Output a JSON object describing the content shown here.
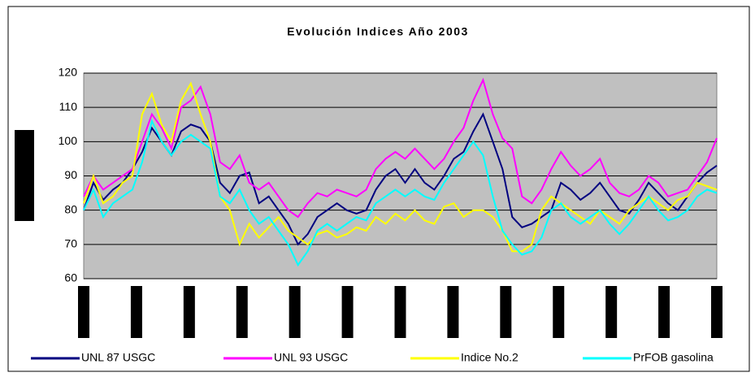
{
  "chart_data": {
    "type": "line",
    "title": "Evolución Indices Año 2003",
    "categories": [
      null,
      null,
      null,
      null,
      null,
      null,
      null,
      null,
      null,
      null,
      null,
      null,
      null,
      null,
      null,
      null,
      null,
      null,
      null,
      null,
      null,
      null,
      null,
      null,
      null,
      null,
      null,
      null,
      null,
      null,
      null,
      null,
      null,
      null,
      null,
      null,
      null,
      null,
      null,
      null,
      null,
      null,
      null,
      null,
      null,
      null,
      null,
      null,
      null,
      null,
      null,
      null,
      null,
      null,
      null,
      null,
      null,
      null,
      null,
      null,
      null,
      null,
      null,
      null,
      null,
      null
    ],
    "ylim": [
      60,
      120
    ],
    "yticks": [
      60,
      70,
      80,
      90,
      100,
      110,
      120
    ],
    "grid": true,
    "legend": "bottom",
    "series": [
      {
        "name": "UNL 87 USGC",
        "color": "#000080",
        "values": [
          80,
          88,
          83,
          86,
          88,
          92,
          97,
          104,
          100,
          96,
          103,
          105,
          104,
          100,
          88,
          85,
          90,
          91,
          82,
          84,
          80,
          76,
          70,
          73,
          78,
          80,
          82,
          80,
          79,
          80,
          86,
          90,
          92,
          88,
          92,
          88,
          86,
          90,
          95,
          97,
          103,
          108,
          100,
          92,
          78,
          75,
          76,
          78,
          80,
          88,
          86,
          83,
          85,
          88,
          84,
          80,
          79,
          83,
          88,
          85,
          82,
          80,
          84,
          88,
          91,
          93
        ]
      },
      {
        "name": "UNL 93 USGC",
        "color": "#ff00ff",
        "values": [
          84,
          90,
          86,
          88,
          90,
          92,
          100,
          108,
          104,
          98,
          110,
          112,
          116,
          108,
          94,
          92,
          96,
          88,
          86,
          88,
          84,
          80,
          78,
          82,
          85,
          84,
          86,
          85,
          84,
          86,
          92,
          95,
          97,
          95,
          98,
          95,
          92,
          95,
          100,
          104,
          112,
          118,
          108,
          101,
          98,
          84,
          82,
          86,
          92,
          97,
          93,
          90,
          92,
          95,
          88,
          85,
          84,
          86,
          90,
          88,
          84,
          85,
          86,
          90,
          94,
          101
        ]
      },
      {
        "name": "Indice No.2",
        "color": "#ffff00",
        "values": [
          82,
          90,
          82,
          84,
          88,
          90,
          108,
          114,
          105,
          100,
          112,
          117,
          108,
          100,
          84,
          80,
          70,
          76,
          72,
          75,
          78,
          74,
          72,
          70,
          73,
          74,
          72,
          73,
          75,
          74,
          78,
          76,
          79,
          77,
          80,
          77,
          76,
          81,
          82,
          78,
          80,
          80,
          78,
          74,
          68,
          68,
          70,
          80,
          84,
          82,
          80,
          78,
          76,
          80,
          78,
          76,
          80,
          82,
          84,
          82,
          80,
          83,
          84,
          88,
          87,
          86
        ]
      },
      {
        "name": "PrFOB gasolina",
        "color": "#00ffff",
        "values": [
          80,
          86,
          78,
          82,
          84,
          86,
          94,
          106,
          100,
          96,
          100,
          102,
          100,
          98,
          84,
          82,
          86,
          80,
          76,
          78,
          74,
          70,
          64,
          68,
          74,
          76,
          74,
          76,
          78,
          77,
          82,
          84,
          86,
          84,
          86,
          84,
          83,
          88,
          92,
          96,
          100,
          96,
          84,
          74,
          70,
          67,
          68,
          72,
          80,
          82,
          78,
          76,
          78,
          80,
          76,
          73,
          76,
          80,
          84,
          80,
          77,
          78,
          80,
          84,
          86,
          85
        ]
      }
    ]
  }
}
